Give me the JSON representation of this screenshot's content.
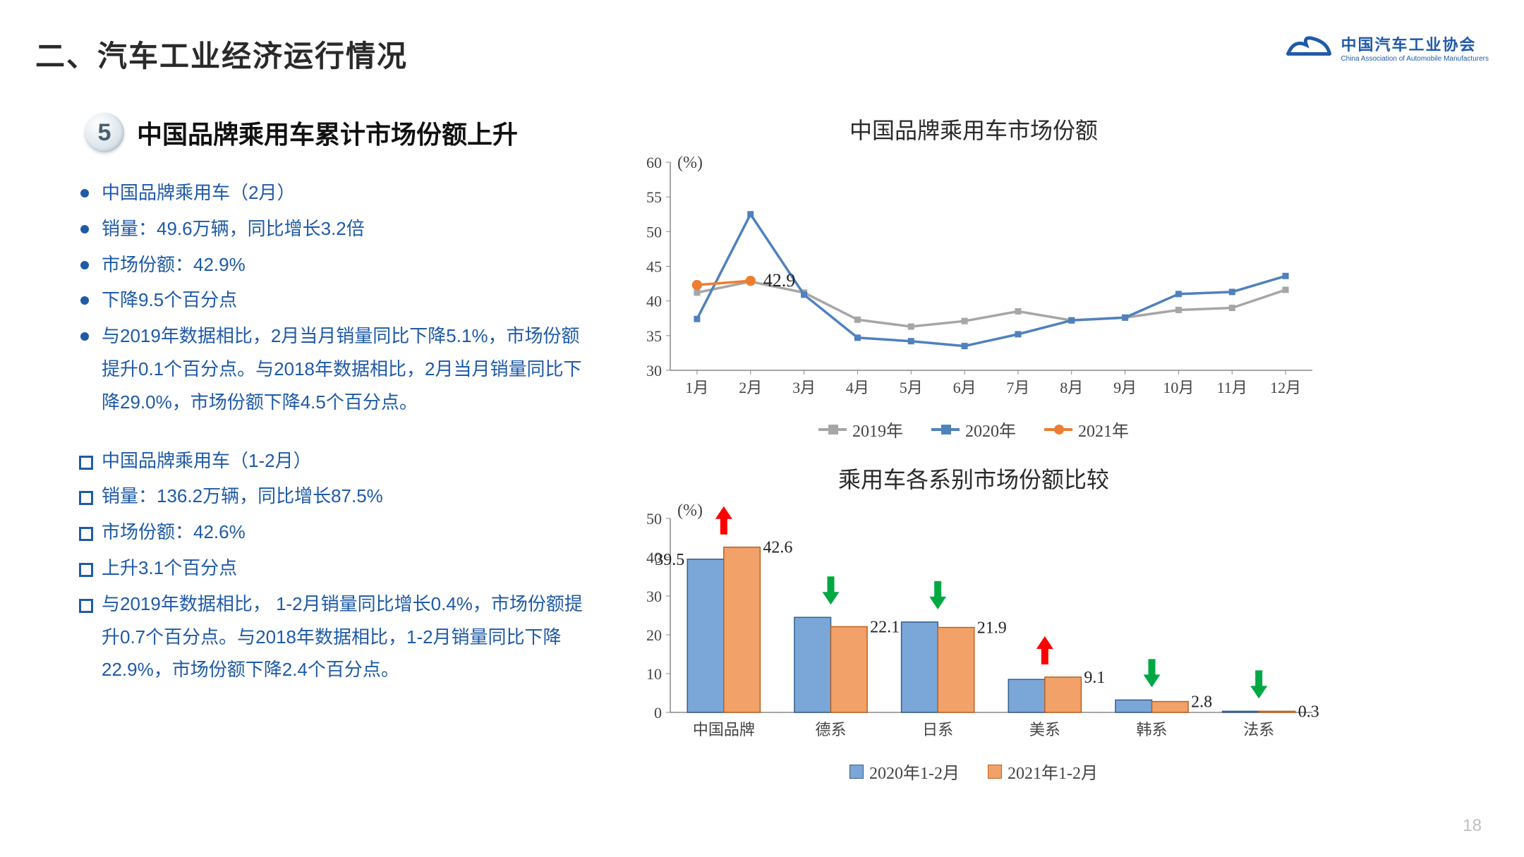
{
  "header": {
    "title": "二、汽车工业经济运行情况",
    "logo_cn": "中国汽车工业协会",
    "logo_en": "China Association of Automobile Manufacturers",
    "logo_color": "#1f5aa8"
  },
  "section": {
    "badge_number": "5",
    "title": "中国品牌乘用车累计市场份额上升"
  },
  "bullets_a": [
    "中国品牌乘用车（2月）",
    "销量：49.6万辆，同比增长3.2倍",
    "市场份额：42.9%",
    "下降9.5个百分点",
    "与2019年数据相比，2月当月销量同比下降5.1%，市场份额提升0.1个百分点。与2018年数据相比，2月当月销量同比下降29.0%，市场份额下降4.5个百分点。"
  ],
  "bullets_b": [
    "中国品牌乘用车（1-2月）",
    "销量：136.2万辆，同比增长87.5%",
    "市场份额：42.6%",
    "上升3.1个百分点",
    "与2019年数据相比， 1-2月销量同比增长0.4%，市场份额提升0.7个百分点。与2018年数据相比，1-2月销量同比下降22.9%，市场份额下降2.4个百分点。"
  ],
  "line_chart": {
    "title": "中国品牌乘用车市场份额",
    "y_unit": "(%)",
    "ylim": [
      30,
      60
    ],
    "ytick_step": 5,
    "x_labels": [
      "1月",
      "2月",
      "3月",
      "4月",
      "5月",
      "6月",
      "7月",
      "8月",
      "9月",
      "10月",
      "11月",
      "12月"
    ],
    "series": {
      "s2019": {
        "label": "2019年",
        "color": "#a6a6a6",
        "values": [
          41.2,
          42.8,
          41.2,
          37.3,
          36.3,
          37.1,
          38.5,
          37.2,
          37.6,
          38.7,
          39.0,
          41.6
        ]
      },
      "s2020": {
        "label": "2020年",
        "color": "#4f81bd",
        "values": [
          37.4,
          52.5,
          40.9,
          34.7,
          34.2,
          33.5,
          35.2,
          37.2,
          37.6,
          41.0,
          41.3,
          43.6
        ]
      },
      "s2021": {
        "label": "2021年",
        "color": "#ed7d31",
        "values": [
          42.3,
          42.9
        ]
      }
    },
    "annotation": {
      "text": "42.9",
      "at_index": 1,
      "series": "s2021"
    },
    "marker_size": 8,
    "line_width": 3.5,
    "axis_color": "#888"
  },
  "bar_chart": {
    "title": "乘用车各系别市场份额比较",
    "y_unit": "(%)",
    "ylim": [
      0,
      50
    ],
    "ytick_step": 10,
    "categories": [
      "中国品牌",
      "德系",
      "日系",
      "美系",
      "韩系",
      "法系"
    ],
    "series_a": {
      "label": "2020年1-2月",
      "color": "#7aa7d8",
      "border": "#355e8c",
      "values": [
        39.5,
        24.5,
        23.3,
        8.5,
        3.2,
        0.3
      ]
    },
    "series_b": {
      "label": "2021年1-2月",
      "color": "#f2a268",
      "border": "#ba6220",
      "values": [
        42.6,
        22.1,
        21.9,
        9.1,
        2.8,
        0.3
      ]
    },
    "labels_b": [
      "42.6",
      "22.1",
      "21.9",
      "9.1",
      "2.8",
      "0.3"
    ],
    "label_a_first": "39.5",
    "arrows": [
      "up",
      "down",
      "down",
      "up",
      "down",
      "down"
    ],
    "arrow_up_color": "#ff0000",
    "arrow_down_color": "#00a843",
    "bar_width": 0.34,
    "axis_color": "#888"
  },
  "page_number": "18"
}
